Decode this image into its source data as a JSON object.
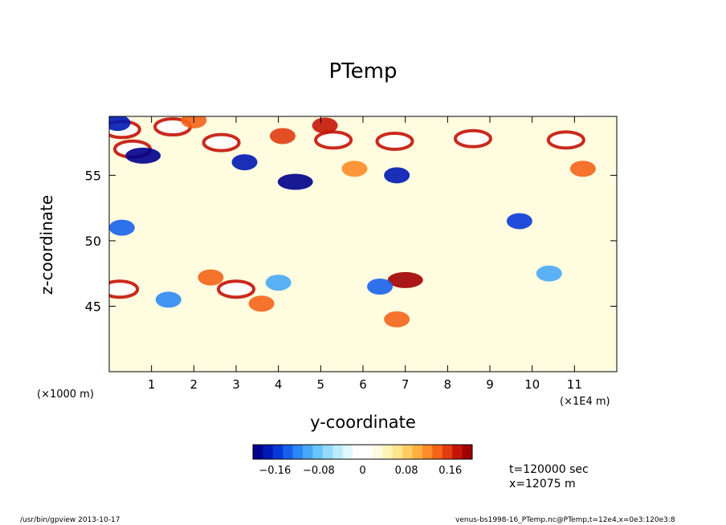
{
  "chart_data": {
    "type": "heatmap",
    "title": "PTemp",
    "xlabel": "y-coordinate",
    "ylabel": "z-coordinate",
    "x_unit_left": "(×1000 m)",
    "x_unit_right": "(×1E4 m)",
    "x_ticks": [
      "1",
      "2",
      "3",
      "4",
      "5",
      "6",
      "7",
      "8",
      "9",
      "10",
      "11"
    ],
    "x_tick_values": [
      10000,
      20000,
      30000,
      40000,
      50000,
      60000,
      70000,
      80000,
      90000,
      100000,
      110000
    ],
    "xlim": [
      0,
      120000
    ],
    "y_ticks": [
      "45",
      "50",
      "55"
    ],
    "y_tick_values": [
      45000,
      50000,
      55000
    ],
    "ylim": [
      40000,
      59500
    ],
    "colorbar": {
      "ticks": [
        "−0.16",
        "−0.08",
        "0",
        "0.08",
        "0.16"
      ],
      "tick_values": [
        -0.16,
        -0.08,
        0,
        0.08,
        0.16
      ],
      "range": [
        -0.2,
        0.2
      ],
      "colors": [
        "#00008c",
        "#0018b4",
        "#0838d8",
        "#1860ec",
        "#2c88f4",
        "#48a8f8",
        "#6cc4fc",
        "#94dafc",
        "#bcecfc",
        "#e0f8fc",
        "#ffffff",
        "#ffffff",
        "#fffce0",
        "#fff4b8",
        "#ffe48c",
        "#ffcc64",
        "#ffb040",
        "#ff8c28",
        "#f46418",
        "#e03c10",
        "#c41408",
        "#a00000"
      ]
    },
    "features": [
      {
        "kind": "blob",
        "y": 3000,
        "z": 58500,
        "value": 0.25
      },
      {
        "kind": "blob",
        "y": 5500,
        "z": 57000,
        "value": 0.25
      },
      {
        "kind": "blob",
        "y": 15000,
        "z": 58700,
        "value": 0.25
      },
      {
        "kind": "blob",
        "y": 26500,
        "z": 57500,
        "value": 0.25
      },
      {
        "kind": "blob",
        "y": 53000,
        "z": 57700,
        "value": 0.25
      },
      {
        "kind": "blob",
        "y": 67500,
        "z": 57600,
        "value": 0.25
      },
      {
        "kind": "blob",
        "y": 86000,
        "z": 57800,
        "value": 0.25
      },
      {
        "kind": "blob",
        "y": 108000,
        "z": 57700,
        "value": 0.25
      },
      {
        "kind": "blob",
        "y": 2500,
        "z": 46300,
        "value": 0.25
      },
      {
        "kind": "blob",
        "y": 30000,
        "z": 46300,
        "value": 0.25
      },
      {
        "kind": "blob",
        "y": 70000,
        "z": 47000,
        "value": 0.2
      },
      {
        "kind": "blob",
        "y": 58000,
        "z": 55500,
        "value": 0.12
      },
      {
        "kind": "blob",
        "y": 112000,
        "z": 55500,
        "value": 0.14
      },
      {
        "kind": "blob",
        "y": 41000,
        "z": 58000,
        "value": 0.16
      },
      {
        "kind": "blob",
        "y": 51000,
        "z": 58800,
        "value": 0.17
      },
      {
        "kind": "blob",
        "y": 20000,
        "z": 59200,
        "value": 0.14
      },
      {
        "kind": "blob",
        "y": 68000,
        "z": 44000,
        "value": 0.14
      },
      {
        "kind": "blob",
        "y": 36000,
        "z": 45200,
        "value": 0.14
      },
      {
        "kind": "blob",
        "y": 24000,
        "z": 47200,
        "value": 0.13
      },
      {
        "kind": "blob",
        "y": 8000,
        "z": 56500,
        "value": -0.2
      },
      {
        "kind": "blob",
        "y": 32000,
        "z": 56000,
        "value": -0.18
      },
      {
        "kind": "blob",
        "y": 44000,
        "z": 54500,
        "value": -0.2
      },
      {
        "kind": "blob",
        "y": 68000,
        "z": 55000,
        "value": -0.18
      },
      {
        "kind": "blob",
        "y": 3000,
        "z": 51000,
        "value": -0.14
      },
      {
        "kind": "blob",
        "y": 97000,
        "z": 51500,
        "value": -0.15
      },
      {
        "kind": "blob",
        "y": 64000,
        "z": 46500,
        "value": -0.14
      },
      {
        "kind": "blob",
        "y": 14000,
        "z": 45500,
        "value": -0.12
      },
      {
        "kind": "blob",
        "y": 40000,
        "z": 46800,
        "value": -0.1
      },
      {
        "kind": "blob",
        "y": 104000,
        "z": 47500,
        "value": -0.1
      },
      {
        "kind": "blob",
        "y": 2000,
        "z": 59000,
        "value": -0.18
      }
    ]
  },
  "info": {
    "time": "t=120000 sec",
    "position": "x=12075  m"
  },
  "footer": {
    "program": "/usr/bin/gpview   2013-10-17",
    "source": "venus-bs1998-16_PTemp.nc@PTemp,t=12e4,x=0e3:120e3:8"
  }
}
